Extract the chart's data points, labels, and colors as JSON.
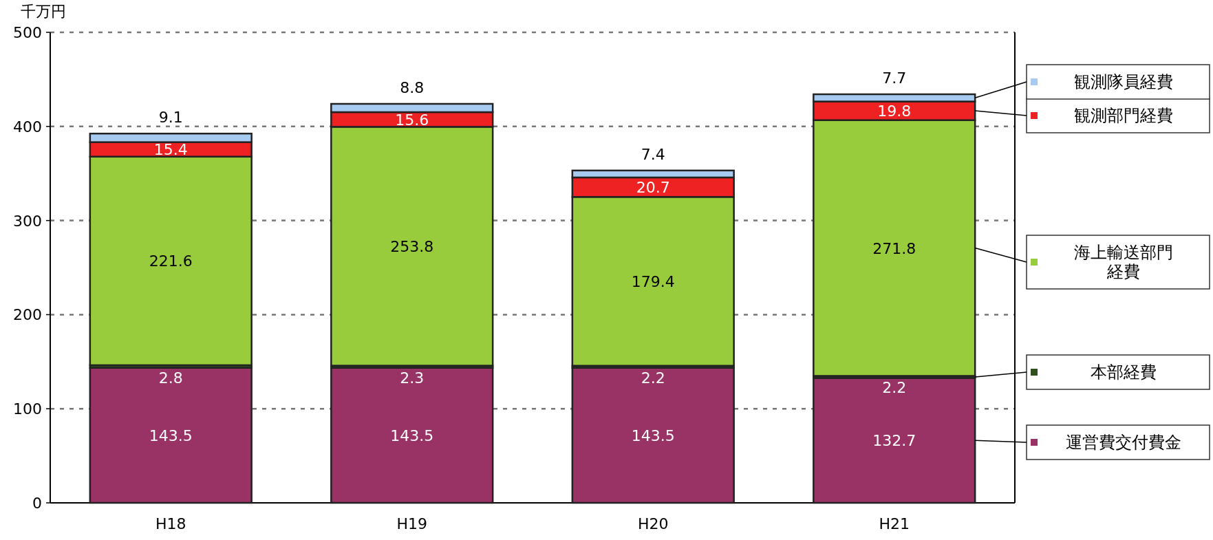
{
  "chart_data": {
    "type": "bar",
    "stacked": true,
    "ylabel": "千万円",
    "categories": [
      "H18",
      "H19",
      "H20",
      "H21"
    ],
    "series": [
      {
        "name": "運営費交付費金",
        "color": "#993366",
        "values": [
          143.5,
          143.5,
          143.5,
          132.7
        ]
      },
      {
        "name": "本部経費",
        "color": "#2f4f1f",
        "values": [
          2.8,
          2.3,
          2.2,
          2.2
        ]
      },
      {
        "name": "海上輸送部門経費",
        "color": "#99cc3d",
        "values": [
          221.6,
          253.8,
          179.4,
          271.8
        ]
      },
      {
        "name": "観測部門経費",
        "color": "#ee2222",
        "values": [
          15.4,
          15.6,
          20.7,
          19.8
        ]
      },
      {
        "name": "観測隊員経費",
        "color": "#a6caf0",
        "values": [
          9.1,
          8.8,
          7.4,
          7.7
        ]
      }
    ],
    "ylim": [
      0,
      500
    ],
    "yticks": [
      0,
      100,
      200,
      300,
      400,
      500
    ],
    "grid": "y",
    "legend": "right",
    "data_labels": true
  }
}
